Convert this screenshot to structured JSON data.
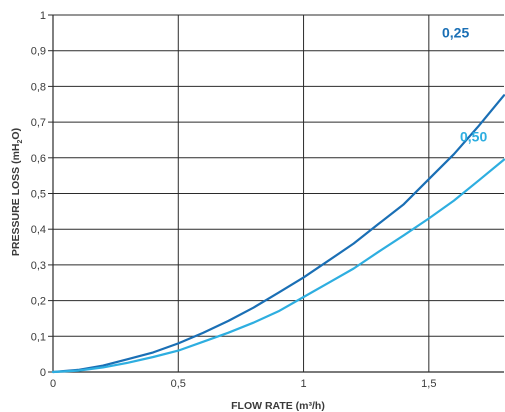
{
  "chart_data": {
    "type": "line",
    "xlabel": "FLOW RATE (m³/h)",
    "ylabel": "PRESSURE LOSS (mH",
    "ylabel_sub": "2",
    "ylabel_end": "O)",
    "xlim": [
      0,
      1.8
    ],
    "ylim": [
      0,
      1
    ],
    "grid": true,
    "x_ticks": [
      {
        "value": 0,
        "label": "0"
      },
      {
        "value": 0.5,
        "label": "0,5"
      },
      {
        "value": 1,
        "label": "1"
      },
      {
        "value": 1.5,
        "label": "1,5"
      }
    ],
    "y_ticks": [
      {
        "value": 0,
        "label": "0"
      },
      {
        "value": 0.1,
        "label": "0,1"
      },
      {
        "value": 0.2,
        "label": "0,2"
      },
      {
        "value": 0.3,
        "label": "0,3"
      },
      {
        "value": 0.4,
        "label": "0,4"
      },
      {
        "value": 0.5,
        "label": "0,5"
      },
      {
        "value": 0.6,
        "label": "0,6"
      },
      {
        "value": 0.7,
        "label": "0,7"
      },
      {
        "value": 0.8,
        "label": "0,8"
      },
      {
        "value": 0.9,
        "label": "0,9"
      },
      {
        "value": 1,
        "label": "1"
      }
    ],
    "series": [
      {
        "name": "0,25",
        "color": "#1a6fb5",
        "x": [
          0,
          0.1,
          0.2,
          0.3,
          0.4,
          0.5,
          0.6,
          0.7,
          0.8,
          0.9,
          1.0,
          1.1,
          1.2,
          1.3,
          1.4,
          1.5,
          1.6,
          1.7,
          1.8
        ],
        "y": [
          0,
          0.006,
          0.018,
          0.036,
          0.055,
          0.08,
          0.11,
          0.143,
          0.18,
          0.222,
          0.265,
          0.312,
          0.36,
          0.415,
          0.47,
          0.54,
          0.61,
          0.69,
          0.775
        ]
      },
      {
        "name": "0,50",
        "color": "#2eaee0",
        "x": [
          0,
          0.1,
          0.2,
          0.3,
          0.4,
          0.5,
          0.6,
          0.7,
          0.8,
          0.9,
          1.0,
          1.1,
          1.2,
          1.3,
          1.4,
          1.5,
          1.6,
          1.7,
          1.8
        ],
        "y": [
          0,
          0.004,
          0.013,
          0.026,
          0.042,
          0.06,
          0.085,
          0.11,
          0.138,
          0.17,
          0.21,
          0.25,
          0.29,
          0.337,
          0.383,
          0.43,
          0.48,
          0.537,
          0.595
        ]
      }
    ]
  }
}
